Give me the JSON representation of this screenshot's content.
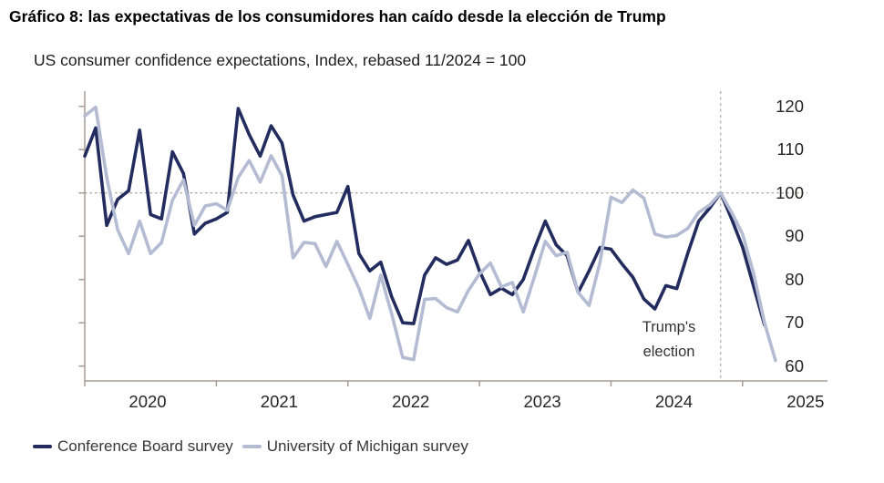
{
  "title": "Gráfico 8: las expectativas de los consumidores han caído desde la elección de Trump",
  "subtitle": "US consumer confidence expectations, Index, rebased 11/2024 = 100",
  "annotation": {
    "line1": "Trump's",
    "line2": "election"
  },
  "legend": [
    {
      "label": "Conference Board survey",
      "color": "#232c5e"
    },
    {
      "label": "University of Michigan survey",
      "color": "#b3bcd3"
    }
  ],
  "colors": {
    "conference_board": "#232c5e",
    "michigan": "#b3bcd3",
    "axis": "#a59c92",
    "reference_dash": "#9a8b7d",
    "event_dash": "#b5a99b",
    "tick_text": "#262626",
    "annotation_text": "#333333"
  },
  "chart_data": {
    "type": "line",
    "title": "US consumer confidence expectations, Index, rebased 11/2024 = 100",
    "x_unit": "month",
    "x_start": "2020-01",
    "x_tick_labels": [
      "2020",
      "2021",
      "2022",
      "2023",
      "2024",
      "2025"
    ],
    "x_tick_month_indexes": [
      0,
      12,
      24,
      36,
      48,
      60
    ],
    "y_ticks": [
      120,
      110,
      100,
      90,
      80,
      70,
      60
    ],
    "ylim": [
      57,
      123
    ],
    "grid": "off",
    "reference_line_y": 100,
    "event_line": {
      "label": "Trump's election",
      "x": "2024-11",
      "month_index": 58
    },
    "legend_position": "bottom-left",
    "series": [
      {
        "name": "Conference Board survey",
        "color": "#232c5e",
        "values": [
          108.5,
          115,
          92.5,
          98.5,
          100.5,
          114.5,
          95,
          94,
          109.5,
          104.5,
          90.5,
          93,
          94,
          95.5,
          119.5,
          113.5,
          108.5,
          115.5,
          111.5,
          99.5,
          93.5,
          94.5,
          95,
          95.5,
          101.5,
          86,
          82,
          84,
          76,
          70,
          69.8,
          81,
          85,
          83.5,
          84.5,
          89,
          82,
          76.5,
          78,
          76.5,
          80,
          87,
          93.5,
          88,
          85.5,
          77,
          82,
          87.4,
          87,
          83.6,
          80.5,
          75.5,
          73.2,
          78.6,
          77.9,
          86,
          93.5,
          96.5,
          100,
          94,
          87.5,
          78.5,
          69.5
        ]
      },
      {
        "name": "University of Michigan survey",
        "color": "#b3bcd3",
        "values": [
          117.8,
          119.8,
          103.6,
          91.5,
          86,
          93.5,
          86,
          88.5,
          98.3,
          103,
          92.5,
          97,
          97.5,
          96,
          103.6,
          107.5,
          102.5,
          108.6,
          104,
          85,
          88.6,
          88.3,
          83,
          88.8,
          83.5,
          78,
          71,
          81,
          72,
          62,
          61.5,
          75.4,
          75.6,
          73.5,
          72.5,
          77.5,
          81.3,
          83.8,
          78.3,
          79.3,
          72.5,
          80.5,
          88.8,
          85.5,
          86.3,
          77,
          74,
          84,
          99,
          97.8,
          100.7,
          98.8,
          90.5,
          89.8,
          90.2,
          91.8,
          95.5,
          97.2,
          100,
          95.5,
          90.5,
          81.5,
          70,
          61.3
        ]
      }
    ]
  }
}
